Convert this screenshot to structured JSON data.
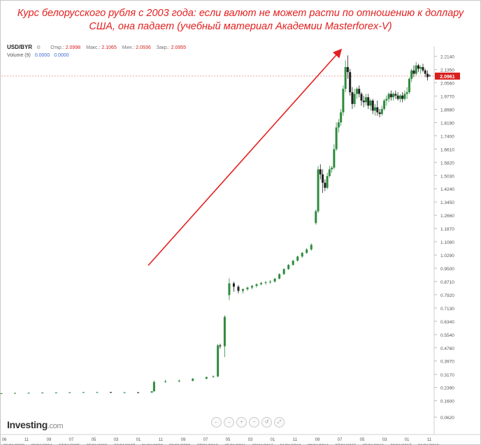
{
  "header": {
    "line1": "Курс белорусского рубля с 2003 года: если валют не может расти по отношению к доллару",
    "line2": "США, она падает (учебный материал Академии Masterforex-V)"
  },
  "legend": {
    "symbol": "USD/BYR",
    "open_label": "Откр.:",
    "open_value": "2.0998",
    "high_label": "Макс.:",
    "high_value": "2.1065",
    "low_label": "Мин.:",
    "low_value": "2.0936",
    "close_label": "Закр.:",
    "close_value": "2.0955",
    "volume_label": "Volume (9)",
    "volume_value_1": "0.0000",
    "volume_value_2": "0.0000"
  },
  "brand": {
    "name": "Investing",
    "domain": ".com"
  },
  "nav_buttons": [
    "←",
    "→",
    "+",
    "−",
    "↺",
    "⤢"
  ],
  "colors": {
    "title": "#e41f1f",
    "arrow": "#e41f1f",
    "up": "#2e8b3e",
    "down": "#222222",
    "last_price_tag": "#d9201f"
  },
  "chart_data": {
    "type": "candlestick",
    "symbol": "USD/BYR",
    "y_ticks": [
      0.062,
      0.16,
      0.239,
      0.317,
      0.397,
      0.476,
      0.554,
      0.634,
      0.713,
      0.792,
      0.871,
      0.95,
      1.029,
      1.108,
      1.187,
      1.266,
      1.345,
      1.424,
      1.503,
      1.582,
      1.661,
      1.74,
      1.819,
      1.898,
      1.977,
      2.056,
      2.135,
      2.214
    ],
    "last_price": 2.0961,
    "x_labels_top": [
      "06",
      "11",
      "09",
      "07",
      "05",
      "03",
      "01",
      "11",
      "09",
      "07",
      "05",
      "03",
      "01",
      "11",
      "09",
      "07",
      "05",
      "03",
      "01",
      "11"
    ],
    "x_labels_bottom": [
      "06/01/2003",
      "09/01/2004",
      "07/01/2005",
      "05/01/2006",
      "03/01/2007",
      "01/01/2008",
      "09/01/2009",
      "07/01/2010",
      "05/01/2011",
      "03/01/2012",
      "01/01/2013",
      "09/01/2014",
      "07/01/2015",
      "05/01/2016",
      "03/01/2017",
      "01/01/2018"
    ],
    "series": [
      {
        "x": "2003-06",
        "o": 0.203,
        "h": 0.206,
        "l": 0.2,
        "c": 0.204
      },
      {
        "x": "2003-12",
        "o": 0.204,
        "h": 0.208,
        "l": 0.202,
        "c": 0.206
      },
      {
        "x": "2004-06",
        "o": 0.206,
        "h": 0.209,
        "l": 0.204,
        "c": 0.207
      },
      {
        "x": "2004-12",
        "o": 0.207,
        "h": 0.21,
        "l": 0.205,
        "c": 0.208
      },
      {
        "x": "2005-06",
        "o": 0.208,
        "h": 0.211,
        "l": 0.206,
        "c": 0.209
      },
      {
        "x": "2005-12",
        "o": 0.209,
        "h": 0.212,
        "l": 0.207,
        "c": 0.21
      },
      {
        "x": "2006-06",
        "o": 0.21,
        "h": 0.213,
        "l": 0.208,
        "c": 0.211
      },
      {
        "x": "2006-12",
        "o": 0.211,
        "h": 0.213,
        "l": 0.209,
        "c": 0.211
      },
      {
        "x": "2007-06",
        "o": 0.211,
        "h": 0.213,
        "l": 0.209,
        "c": 0.21
      },
      {
        "x": "2007-12",
        "o": 0.21,
        "h": 0.212,
        "l": 0.208,
        "c": 0.21
      },
      {
        "x": "2008-06",
        "o": 0.21,
        "h": 0.212,
        "l": 0.207,
        "c": 0.209
      },
      {
        "x": "2008-12",
        "o": 0.209,
        "h": 0.218,
        "l": 0.206,
        "c": 0.216
      },
      {
        "x": "2009-01",
        "o": 0.216,
        "h": 0.28,
        "l": 0.214,
        "c": 0.272
      },
      {
        "x": "2009-06",
        "o": 0.272,
        "h": 0.285,
        "l": 0.266,
        "c": 0.276
      },
      {
        "x": "2009-12",
        "o": 0.276,
        "h": 0.287,
        "l": 0.27,
        "c": 0.279
      },
      {
        "x": "2010-06",
        "o": 0.279,
        "h": 0.296,
        "l": 0.275,
        "c": 0.291
      },
      {
        "x": "2010-12",
        "o": 0.291,
        "h": 0.304,
        "l": 0.288,
        "c": 0.301
      },
      {
        "x": "2011-03",
        "o": 0.301,
        "h": 0.311,
        "l": 0.297,
        "c": 0.305
      },
      {
        "x": "2011-05",
        "o": 0.305,
        "h": 0.498,
        "l": 0.3,
        "c": 0.49
      },
      {
        "x": "2011-06",
        "o": 0.49,
        "h": 0.5,
        "l": 0.47,
        "c": 0.485
      },
      {
        "x": "2011-08",
        "o": 0.485,
        "h": 0.67,
        "l": 0.42,
        "c": 0.66
      },
      {
        "x": "2011-10",
        "o": 0.79,
        "h": 0.89,
        "l": 0.76,
        "c": 0.86
      },
      {
        "x": "2011-12",
        "o": 0.86,
        "h": 0.87,
        "l": 0.81,
        "c": 0.84
      },
      {
        "x": "2012-02",
        "o": 0.84,
        "h": 0.85,
        "l": 0.8,
        "c": 0.815
      },
      {
        "x": "2012-04",
        "o": 0.815,
        "h": 0.83,
        "l": 0.8,
        "c": 0.825
      },
      {
        "x": "2012-06",
        "o": 0.825,
        "h": 0.84,
        "l": 0.815,
        "c": 0.835
      },
      {
        "x": "2012-08",
        "o": 0.835,
        "h": 0.85,
        "l": 0.825,
        "c": 0.845
      },
      {
        "x": "2012-10",
        "o": 0.845,
        "h": 0.86,
        "l": 0.835,
        "c": 0.855
      },
      {
        "x": "2012-12",
        "o": 0.855,
        "h": 0.87,
        "l": 0.848,
        "c": 0.862
      },
      {
        "x": "2013-02",
        "o": 0.862,
        "h": 0.875,
        "l": 0.852,
        "c": 0.866
      },
      {
        "x": "2013-04",
        "o": 0.866,
        "h": 0.88,
        "l": 0.858,
        "c": 0.87
      },
      {
        "x": "2013-06",
        "o": 0.87,
        "h": 0.892,
        "l": 0.865,
        "c": 0.888
      },
      {
        "x": "2013-08",
        "o": 0.888,
        "h": 0.92,
        "l": 0.884,
        "c": 0.915
      },
      {
        "x": "2013-10",
        "o": 0.915,
        "h": 0.95,
        "l": 0.91,
        "c": 0.945
      },
      {
        "x": "2013-12",
        "o": 0.945,
        "h": 0.975,
        "l": 0.94,
        "c": 0.97
      },
      {
        "x": "2014-02",
        "o": 0.97,
        "h": 1.0,
        "l": 0.965,
        "c": 0.995
      },
      {
        "x": "2014-04",
        "o": 0.995,
        "h": 1.025,
        "l": 0.99,
        "c": 1.02
      },
      {
        "x": "2014-06",
        "o": 1.02,
        "h": 1.048,
        "l": 1.012,
        "c": 1.042
      },
      {
        "x": "2014-08",
        "o": 1.042,
        "h": 1.07,
        "l": 1.035,
        "c": 1.062
      },
      {
        "x": "2014-10",
        "o": 1.062,
        "h": 1.098,
        "l": 1.055,
        "c": 1.09
      },
      {
        "x": "2014-12",
        "o": 1.22,
        "h": 1.3,
        "l": 1.21,
        "c": 1.29
      },
      {
        "x": "2015-01",
        "o": 1.29,
        "h": 1.56,
        "l": 1.28,
        "c": 1.54
      },
      {
        "x": "2015-02",
        "o": 1.54,
        "h": 1.57,
        "l": 1.48,
        "c": 1.51
      },
      {
        "x": "2015-03",
        "o": 1.51,
        "h": 1.54,
        "l": 1.4,
        "c": 1.46
      },
      {
        "x": "2015-04",
        "o": 1.46,
        "h": 1.48,
        "l": 1.41,
        "c": 1.43
      },
      {
        "x": "2015-05",
        "o": 1.43,
        "h": 1.52,
        "l": 1.42,
        "c": 1.5
      },
      {
        "x": "2015-06",
        "o": 1.5,
        "h": 1.56,
        "l": 1.49,
        "c": 1.54
      },
      {
        "x": "2015-07",
        "o": 1.54,
        "h": 1.56,
        "l": 1.52,
        "c": 1.55
      },
      {
        "x": "2015-08",
        "o": 1.55,
        "h": 1.69,
        "l": 1.54,
        "c": 1.66
      },
      {
        "x": "2015-09",
        "o": 1.66,
        "h": 1.82,
        "l": 1.65,
        "c": 1.79
      },
      {
        "x": "2015-10",
        "o": 1.79,
        "h": 1.84,
        "l": 1.76,
        "c": 1.82
      },
      {
        "x": "2015-11",
        "o": 1.82,
        "h": 1.9,
        "l": 1.8,
        "c": 1.88
      },
      {
        "x": "2015-12",
        "o": 1.88,
        "h": 2.04,
        "l": 1.86,
        "c": 2.02
      },
      {
        "x": "2016-01",
        "o": 2.02,
        "h": 2.19,
        "l": 2.0,
        "c": 2.15
      },
      {
        "x": "2016-02",
        "o": 2.15,
        "h": 2.22,
        "l": 2.08,
        "c": 2.12
      },
      {
        "x": "2016-03",
        "o": 2.12,
        "h": 2.14,
        "l": 1.98,
        "c": 2.0
      },
      {
        "x": "2016-04",
        "o": 2.0,
        "h": 2.03,
        "l": 1.9,
        "c": 1.93
      },
      {
        "x": "2016-05",
        "o": 1.93,
        "h": 2.02,
        "l": 1.91,
        "c": 1.99
      },
      {
        "x": "2016-06",
        "o": 1.99,
        "h": 2.03,
        "l": 1.96,
        "c": 2.02
      },
      {
        "x": "2016-07",
        "o": 2.02,
        "h": 2.04,
        "l": 1.97,
        "c": 1.99
      },
      {
        "x": "2016-08",
        "o": 1.99,
        "h": 2.0,
        "l": 1.92,
        "c": 1.95
      },
      {
        "x": "2016-09",
        "o": 1.95,
        "h": 1.98,
        "l": 1.91,
        "c": 1.94
      },
      {
        "x": "2016-10",
        "o": 1.94,
        "h": 1.99,
        "l": 1.92,
        "c": 1.97
      },
      {
        "x": "2016-11",
        "o": 1.97,
        "h": 1.99,
        "l": 1.9,
        "c": 1.92
      },
      {
        "x": "2016-12",
        "o": 1.92,
        "h": 1.96,
        "l": 1.89,
        "c": 1.95
      },
      {
        "x": "2017-01",
        "o": 1.95,
        "h": 1.96,
        "l": 1.87,
        "c": 1.89
      },
      {
        "x": "2017-02",
        "o": 1.89,
        "h": 1.93,
        "l": 1.86,
        "c": 1.91
      },
      {
        "x": "2017-03",
        "o": 1.91,
        "h": 1.95,
        "l": 1.86,
        "c": 1.88
      },
      {
        "x": "2017-04",
        "o": 1.88,
        "h": 1.9,
        "l": 1.85,
        "c": 1.87
      },
      {
        "x": "2017-05",
        "o": 1.87,
        "h": 1.92,
        "l": 1.86,
        "c": 1.9
      },
      {
        "x": "2017-06",
        "o": 1.9,
        "h": 1.96,
        "l": 1.89,
        "c": 1.95
      },
      {
        "x": "2017-07",
        "o": 1.95,
        "h": 1.98,
        "l": 1.92,
        "c": 1.96
      },
      {
        "x": "2017-08",
        "o": 1.96,
        "h": 2.0,
        "l": 1.94,
        "c": 1.99
      },
      {
        "x": "2017-09",
        "o": 1.99,
        "h": 2.01,
        "l": 1.95,
        "c": 1.97
      },
      {
        "x": "2017-10",
        "o": 1.97,
        "h": 2.0,
        "l": 1.95,
        "c": 1.99
      },
      {
        "x": "2017-11",
        "o": 1.99,
        "h": 2.01,
        "l": 1.96,
        "c": 1.98
      },
      {
        "x": "2017-12",
        "o": 1.98,
        "h": 2.0,
        "l": 1.95,
        "c": 1.96
      },
      {
        "x": "2018-01",
        "o": 1.96,
        "h": 1.99,
        "l": 1.94,
        "c": 1.98
      },
      {
        "x": "2018-02",
        "o": 1.98,
        "h": 2.0,
        "l": 1.94,
        "c": 1.96
      },
      {
        "x": "2018-03",
        "o": 1.96,
        "h": 2.01,
        "l": 1.95,
        "c": 1.99
      },
      {
        "x": "2018-04",
        "o": 1.99,
        "h": 2.03,
        "l": 1.96,
        "c": 2.0
      },
      {
        "x": "2018-05",
        "o": 2.0,
        "h": 2.09,
        "l": 1.99,
        "c": 2.08
      },
      {
        "x": "2018-06",
        "o": 2.08,
        "h": 2.14,
        "l": 2.06,
        "c": 2.13
      },
      {
        "x": "2018-07",
        "o": 2.13,
        "h": 2.16,
        "l": 2.09,
        "c": 2.11
      },
      {
        "x": "2018-08",
        "o": 2.11,
        "h": 2.18,
        "l": 2.1,
        "c": 2.16
      },
      {
        "x": "2018-09",
        "o": 2.16,
        "h": 2.17,
        "l": 2.12,
        "c": 2.14
      },
      {
        "x": "2018-10",
        "o": 2.14,
        "h": 2.16,
        "l": 2.11,
        "c": 2.15
      },
      {
        "x": "2018-11",
        "o": 2.15,
        "h": 2.17,
        "l": 2.12,
        "c": 2.13
      },
      {
        "x": "2018-12",
        "o": 2.13,
        "h": 2.14,
        "l": 2.09,
        "c": 2.11
      },
      {
        "x": "2019-01",
        "o": 2.11,
        "h": 2.13,
        "l": 2.07,
        "c": 2.09
      },
      {
        "x": "2019-02",
        "o": 2.099,
        "h": 2.107,
        "l": 2.094,
        "c": 2.096
      }
    ]
  }
}
